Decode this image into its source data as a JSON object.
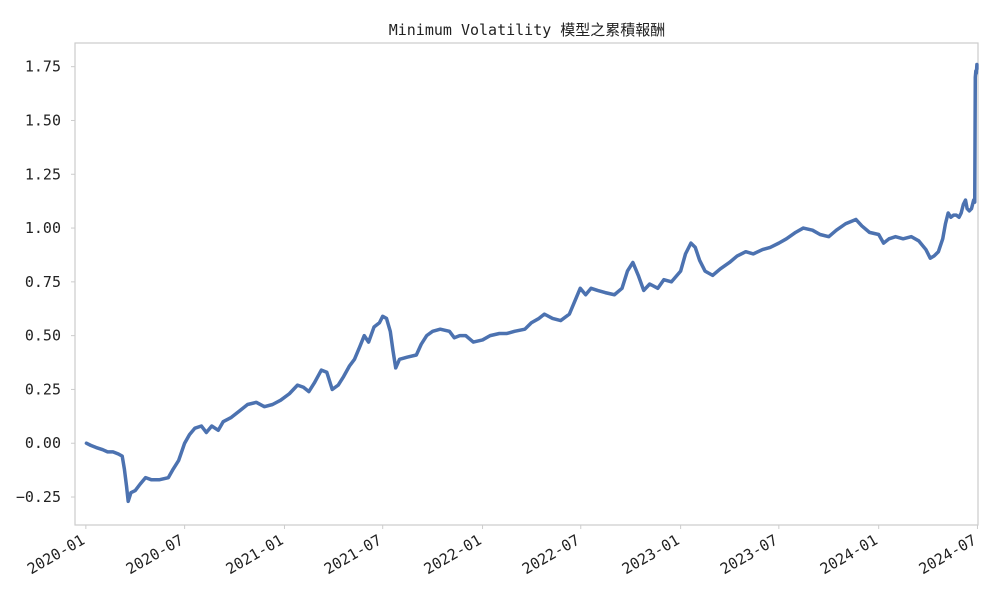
{
  "chart_data": {
    "type": "line",
    "title": "Minimum Volatility 模型之累積報酬",
    "xlabel": "",
    "ylabel": "",
    "grid": false,
    "legend": false,
    "xlim": [
      "2019-12-12",
      "2024-07-02"
    ],
    "ylim": [
      -0.38,
      1.86
    ],
    "x_ticks": [
      {
        "date": "2020-01-01",
        "label": "2020-01"
      },
      {
        "date": "2020-07-01",
        "label": "2020-07"
      },
      {
        "date": "2021-01-01",
        "label": "2021-01"
      },
      {
        "date": "2021-07-01",
        "label": "2021-07"
      },
      {
        "date": "2022-01-01",
        "label": "2022-01"
      },
      {
        "date": "2022-07-01",
        "label": "2022-07"
      },
      {
        "date": "2023-01-01",
        "label": "2023-01"
      },
      {
        "date": "2023-07-01",
        "label": "2023-07"
      },
      {
        "date": "2024-01-01",
        "label": "2024-01"
      },
      {
        "date": "2024-07-01",
        "label": "2024-07"
      }
    ],
    "y_ticks": [
      {
        "value": -0.25,
        "label": "−0.25"
      },
      {
        "value": 0.0,
        "label": "0.00"
      },
      {
        "value": 0.25,
        "label": "0.25"
      },
      {
        "value": 0.5,
        "label": "0.50"
      },
      {
        "value": 0.75,
        "label": "0.75"
      },
      {
        "value": 1.0,
        "label": "1.00"
      },
      {
        "value": 1.25,
        "label": "1.25"
      },
      {
        "value": 1.5,
        "label": "1.50"
      },
      {
        "value": 1.75,
        "label": "1.75"
      }
    ],
    "series": [
      {
        "color": "#4c72b0",
        "points": [
          [
            "2020-01-02",
            0.0
          ],
          [
            "2020-01-10",
            -0.01
          ],
          [
            "2020-01-20",
            -0.02
          ],
          [
            "2020-02-01",
            -0.03
          ],
          [
            "2020-02-10",
            -0.04
          ],
          [
            "2020-02-20",
            -0.04
          ],
          [
            "2020-03-01",
            -0.05
          ],
          [
            "2020-03-08",
            -0.06
          ],
          [
            "2020-03-12",
            -0.12
          ],
          [
            "2020-03-16",
            -0.2
          ],
          [
            "2020-03-19",
            -0.27
          ],
          [
            "2020-03-24",
            -0.23
          ],
          [
            "2020-04-01",
            -0.22
          ],
          [
            "2020-04-10",
            -0.19
          ],
          [
            "2020-04-20",
            -0.16
          ],
          [
            "2020-05-01",
            -0.17
          ],
          [
            "2020-05-15",
            -0.17
          ],
          [
            "2020-06-01",
            -0.16
          ],
          [
            "2020-06-10",
            -0.12
          ],
          [
            "2020-06-20",
            -0.08
          ],
          [
            "2020-07-01",
            0.0
          ],
          [
            "2020-07-10",
            0.04
          ],
          [
            "2020-07-20",
            0.07
          ],
          [
            "2020-08-01",
            0.08
          ],
          [
            "2020-08-10",
            0.05
          ],
          [
            "2020-08-20",
            0.08
          ],
          [
            "2020-09-01",
            0.06
          ],
          [
            "2020-09-10",
            0.1
          ],
          [
            "2020-09-25",
            0.12
          ],
          [
            "2020-10-10",
            0.15
          ],
          [
            "2020-10-25",
            0.18
          ],
          [
            "2020-11-10",
            0.19
          ],
          [
            "2020-11-25",
            0.17
          ],
          [
            "2020-12-10",
            0.18
          ],
          [
            "2020-12-25",
            0.2
          ],
          [
            "2021-01-10",
            0.23
          ],
          [
            "2021-01-25",
            0.27
          ],
          [
            "2021-02-05",
            0.26
          ],
          [
            "2021-02-15",
            0.24
          ],
          [
            "2021-02-25",
            0.28
          ],
          [
            "2021-03-10",
            0.34
          ],
          [
            "2021-03-20",
            0.33
          ],
          [
            "2021-03-30",
            0.25
          ],
          [
            "2021-04-10",
            0.27
          ],
          [
            "2021-04-20",
            0.31
          ],
          [
            "2021-05-01",
            0.36
          ],
          [
            "2021-05-10",
            0.39
          ],
          [
            "2021-05-20",
            0.45
          ],
          [
            "2021-05-28",
            0.5
          ],
          [
            "2021-06-05",
            0.47
          ],
          [
            "2021-06-15",
            0.54
          ],
          [
            "2021-06-25",
            0.56
          ],
          [
            "2021-07-01",
            0.59
          ],
          [
            "2021-07-08",
            0.58
          ],
          [
            "2021-07-15",
            0.52
          ],
          [
            "2021-07-20",
            0.43
          ],
          [
            "2021-07-25",
            0.35
          ],
          [
            "2021-08-01",
            0.39
          ],
          [
            "2021-08-15",
            0.4
          ],
          [
            "2021-09-01",
            0.41
          ],
          [
            "2021-09-10",
            0.46
          ],
          [
            "2021-09-20",
            0.5
          ],
          [
            "2021-10-01",
            0.52
          ],
          [
            "2021-10-15",
            0.53
          ],
          [
            "2021-11-01",
            0.52
          ],
          [
            "2021-11-10",
            0.49
          ],
          [
            "2021-11-20",
            0.5
          ],
          [
            "2021-12-01",
            0.5
          ],
          [
            "2021-12-15",
            0.47
          ],
          [
            "2022-01-01",
            0.48
          ],
          [
            "2022-01-15",
            0.5
          ],
          [
            "2022-02-01",
            0.51
          ],
          [
            "2022-02-15",
            0.51
          ],
          [
            "2022-03-01",
            0.52
          ],
          [
            "2022-03-20",
            0.53
          ],
          [
            "2022-04-01",
            0.56
          ],
          [
            "2022-04-15",
            0.58
          ],
          [
            "2022-04-25",
            0.6
          ],
          [
            "2022-05-10",
            0.58
          ],
          [
            "2022-05-25",
            0.57
          ],
          [
            "2022-06-10",
            0.6
          ],
          [
            "2022-06-20",
            0.66
          ],
          [
            "2022-06-30",
            0.72
          ],
          [
            "2022-07-10",
            0.69
          ],
          [
            "2022-07-20",
            0.72
          ],
          [
            "2022-08-01",
            0.71
          ],
          [
            "2022-08-15",
            0.7
          ],
          [
            "2022-09-01",
            0.69
          ],
          [
            "2022-09-15",
            0.72
          ],
          [
            "2022-09-25",
            0.8
          ],
          [
            "2022-10-05",
            0.84
          ],
          [
            "2022-10-15",
            0.78
          ],
          [
            "2022-10-25",
            0.71
          ],
          [
            "2022-11-05",
            0.74
          ],
          [
            "2022-11-20",
            0.72
          ],
          [
            "2022-12-01",
            0.76
          ],
          [
            "2022-12-15",
            0.75
          ],
          [
            "2023-01-01",
            0.8
          ],
          [
            "2023-01-10",
            0.88
          ],
          [
            "2023-01-20",
            0.93
          ],
          [
            "2023-01-28",
            0.91
          ],
          [
            "2023-02-05",
            0.85
          ],
          [
            "2023-02-15",
            0.8
          ],
          [
            "2023-03-01",
            0.78
          ],
          [
            "2023-03-15",
            0.81
          ],
          [
            "2023-04-01",
            0.84
          ],
          [
            "2023-04-15",
            0.87
          ],
          [
            "2023-05-01",
            0.89
          ],
          [
            "2023-05-15",
            0.88
          ],
          [
            "2023-06-01",
            0.9
          ],
          [
            "2023-06-15",
            0.91
          ],
          [
            "2023-07-01",
            0.93
          ],
          [
            "2023-07-15",
            0.95
          ],
          [
            "2023-08-01",
            0.98
          ],
          [
            "2023-08-15",
            1.0
          ],
          [
            "2023-09-01",
            0.99
          ],
          [
            "2023-09-15",
            0.97
          ],
          [
            "2023-10-01",
            0.96
          ],
          [
            "2023-10-15",
            0.99
          ],
          [
            "2023-11-01",
            1.02
          ],
          [
            "2023-11-20",
            1.04
          ],
          [
            "2023-12-01",
            1.01
          ],
          [
            "2023-12-15",
            0.98
          ],
          [
            "2024-01-01",
            0.97
          ],
          [
            "2024-01-10",
            0.93
          ],
          [
            "2024-01-20",
            0.95
          ],
          [
            "2024-02-01",
            0.96
          ],
          [
            "2024-02-15",
            0.95
          ],
          [
            "2024-03-01",
            0.96
          ],
          [
            "2024-03-15",
            0.94
          ],
          [
            "2024-03-28",
            0.9
          ],
          [
            "2024-04-05",
            0.86
          ],
          [
            "2024-04-12",
            0.87
          ],
          [
            "2024-04-20",
            0.89
          ],
          [
            "2024-04-28",
            0.95
          ],
          [
            "2024-05-03",
            1.02
          ],
          [
            "2024-05-08",
            1.07
          ],
          [
            "2024-05-13",
            1.05
          ],
          [
            "2024-05-18",
            1.06
          ],
          [
            "2024-05-23",
            1.06
          ],
          [
            "2024-05-28",
            1.05
          ],
          [
            "2024-06-01",
            1.07
          ],
          [
            "2024-06-05",
            1.11
          ],
          [
            "2024-06-09",
            1.13
          ],
          [
            "2024-06-12",
            1.09
          ],
          [
            "2024-06-16",
            1.08
          ],
          [
            "2024-06-20",
            1.09
          ],
          [
            "2024-06-24",
            1.13
          ],
          [
            "2024-06-26",
            1.12
          ],
          [
            "2024-06-27",
            1.7
          ],
          [
            "2024-06-28",
            1.73
          ],
          [
            "2024-06-29",
            1.72
          ],
          [
            "2024-06-30",
            1.76
          ],
          [
            "2024-06-30",
            1.74
          ]
        ]
      }
    ]
  }
}
